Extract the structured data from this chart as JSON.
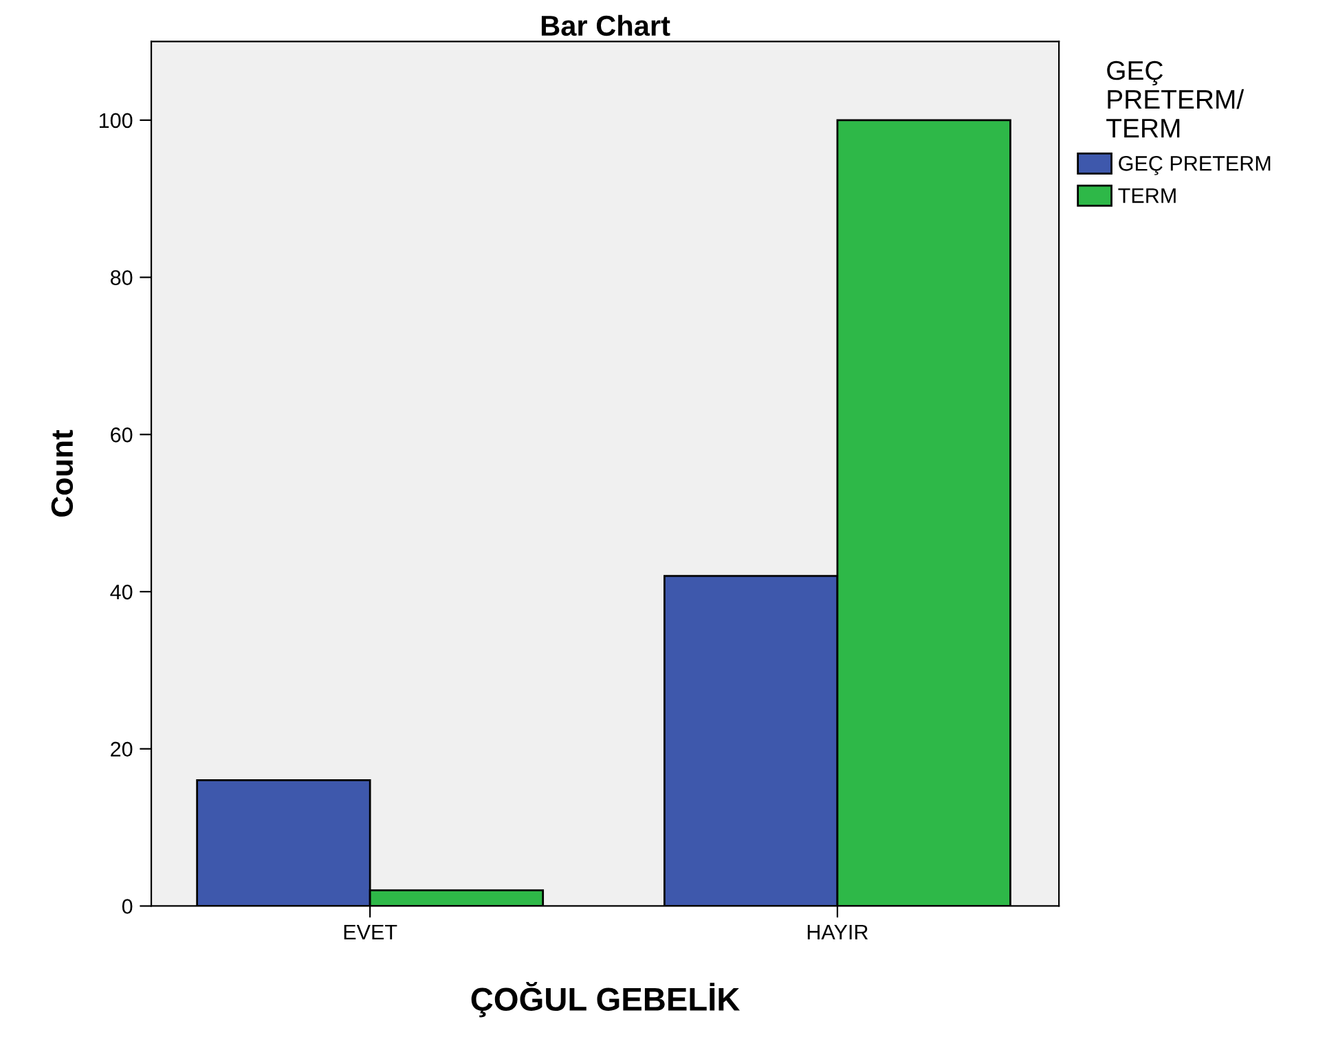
{
  "chart_data": {
    "type": "bar",
    "title": "Bar Chart",
    "xlabel": "ÇOĞUL GEBELİK",
    "ylabel": "Count",
    "legend_title": "GEÇ\nPRETERM/\nTERM",
    "categories": [
      "EVET",
      "HAYIR"
    ],
    "series": [
      {
        "name": "GEÇ PRETERM",
        "color": "#3e58ac",
        "values": [
          16,
          42
        ]
      },
      {
        "name": "TERM",
        "color": "#2eb848",
        "values": [
          2,
          100
        ]
      }
    ],
    "ylim": [
      0,
      110
    ],
    "yticks": [
      0,
      20,
      40,
      60,
      80,
      100
    ],
    "grid": false,
    "legend": "top right"
  }
}
